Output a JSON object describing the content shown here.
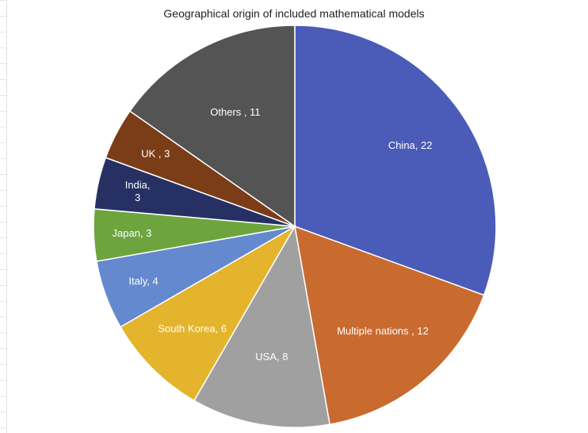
{
  "chart_data": {
    "type": "pie",
    "title": "Geographical origin of included mathematical models",
    "slices": [
      {
        "label": "China, 22",
        "name": "China",
        "value": 22,
        "color": "#4a5bb8"
      },
      {
        "label": "Multiple nations , 12",
        "name": "Multiple nations",
        "value": 12,
        "color": "#c96a2f"
      },
      {
        "label": "USA, 8",
        "name": "USA",
        "value": 8,
        "color": "#a0a0a0"
      },
      {
        "label": "South Korea, 6",
        "name": "South Korea",
        "value": 6,
        "color": "#e3b42c"
      },
      {
        "label": "Italy, 4",
        "name": "Italy",
        "value": 4,
        "color": "#6489cf"
      },
      {
        "label": "Japan, 3",
        "name": "Japan",
        "value": 3,
        "color": "#6ea43e"
      },
      {
        "label": "India,\n3",
        "name": "India",
        "value": 3,
        "color": "#263063"
      },
      {
        "label": "UK , 3",
        "name": "UK",
        "value": 3,
        "color": "#7a3d18"
      },
      {
        "label": "Others , 11",
        "name": "Others",
        "value": 11,
        "color": "#545454"
      }
    ],
    "legend": "none"
  }
}
